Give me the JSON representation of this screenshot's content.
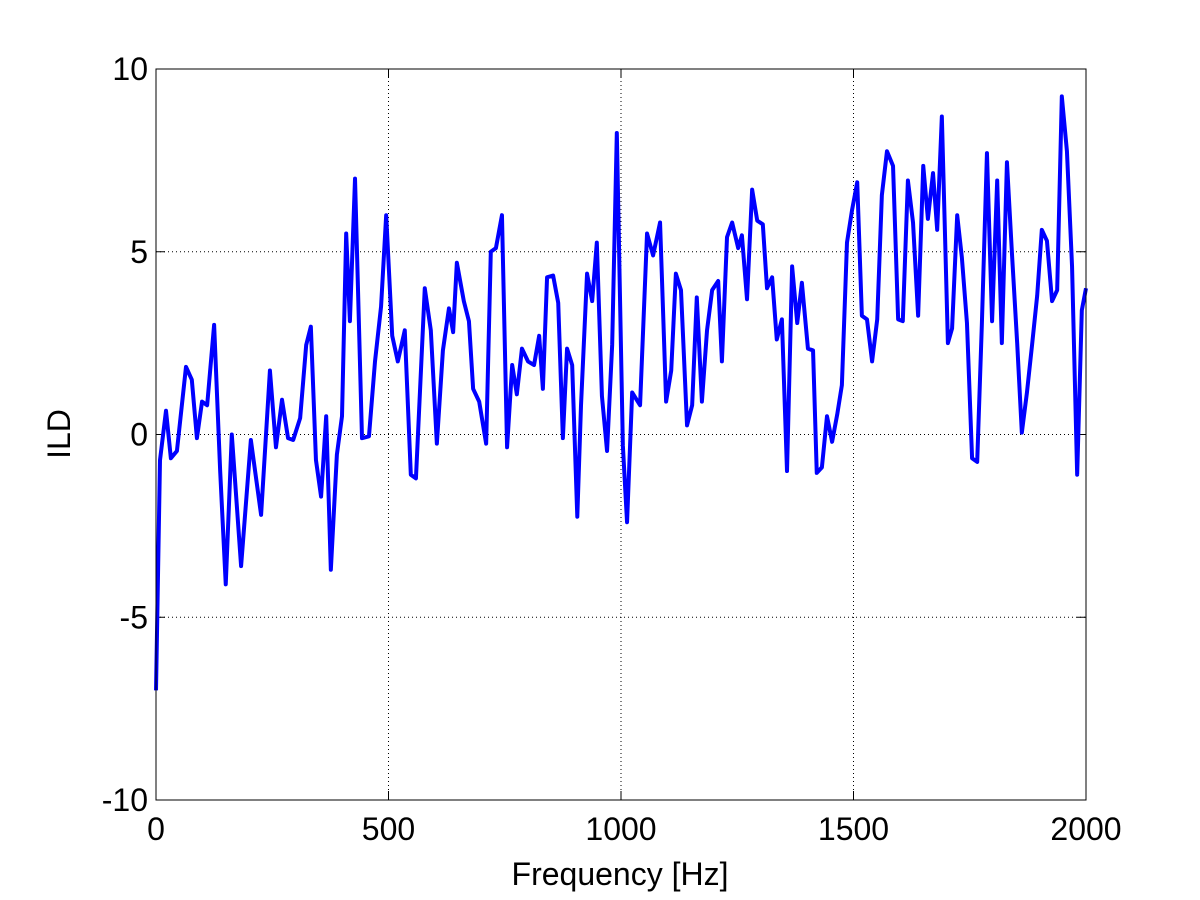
{
  "chart_data": {
    "type": "line",
    "xlabel": "Frequency [Hz]",
    "ylabel": "ILD",
    "xlim": [
      0,
      2000
    ],
    "ylim": [
      -10,
      10
    ],
    "xticks": [
      0,
      500,
      1000,
      1500,
      2000
    ],
    "yticks": [
      -10,
      -5,
      0,
      5,
      10
    ],
    "grid": true,
    "x": [
      0,
      8.6,
      21.5,
      32,
      45,
      64.5,
      77,
      88,
      99,
      110,
      125,
      138,
      150,
      163,
      183,
      204,
      226,
      245,
      258,
      271,
      284,
      295,
      310,
      323,
      333,
      344,
      355,
      366,
      376,
      389,
      400,
      409,
      417,
      428,
      443,
      458,
      471,
      484,
      495,
      508,
      520,
      535,
      548,
      559,
      578,
      591,
      604,
      617,
      630,
      639,
      647,
      662,
      673,
      682,
      695,
      710,
      720,
      731,
      744,
      755,
      766,
      776,
      787,
      800,
      813,
      824,
      832,
      841,
      854,
      865,
      875,
      884,
      895,
      906,
      914,
      927,
      938,
      948,
      959,
      970,
      981,
      991,
      1004,
      1013,
      1024,
      1041,
      1056,
      1069,
      1084,
      1097,
      1108,
      1118,
      1129,
      1142,
      1153,
      1163,
      1174,
      1185,
      1196,
      1209,
      1217,
      1228,
      1239,
      1252,
      1260,
      1271,
      1282,
      1293,
      1305,
      1314,
      1325,
      1335,
      1346,
      1357,
      1368,
      1379,
      1389,
      1402,
      1413,
      1421,
      1432,
      1443,
      1454,
      1465,
      1475,
      1486,
      1497,
      1508,
      1518,
      1529,
      1540,
      1551,
      1561,
      1572,
      1585,
      1596,
      1606,
      1617,
      1628,
      1639,
      1650,
      1660,
      1671,
      1680,
      1690,
      1703,
      1712,
      1723,
      1733,
      1744,
      1755,
      1766,
      1776,
      1787,
      1798,
      1809,
      1819,
      1830,
      1841,
      1852,
      1862,
      1873,
      1884,
      1895,
      1905,
      1916,
      1927,
      1938,
      1948,
      1959,
      1970,
      1981,
      1991,
      2000
    ],
    "series": [
      {
        "color": "#0000ff",
        "values": [
          -7.0,
          -0.7,
          0.65,
          -0.65,
          -0.45,
          1.85,
          1.5,
          -0.1,
          0.9,
          0.8,
          3.0,
          -1.0,
          -4.1,
          0,
          -3.6,
          -0.15,
          -2.2,
          1.75,
          -0.35,
          0.95,
          -0.1,
          -0.15,
          0.45,
          2.45,
          2.95,
          -0.7,
          -1.7,
          0.5,
          -3.7,
          -0.55,
          0.5,
          5.5,
          3.1,
          7.0,
          -0.1,
          -0.05,
          2.0,
          3.5,
          6.0,
          2.7,
          2.0,
          2.85,
          -1.1,
          -1.2,
          4.0,
          2.85,
          -0.25,
          2.3,
          3.45,
          2.8,
          4.7,
          3.65,
          3.1,
          1.25,
          0.9,
          -0.25,
          5.0,
          5.1,
          6.0,
          -0.35,
          1.9,
          1.1,
          2.35,
          2.0,
          1.9,
          2.7,
          1.25,
          4.3,
          4.35,
          3.6,
          -0.1,
          2.35,
          1.9,
          -2.25,
          0.8,
          4.4,
          3.65,
          5.25,
          1.05,
          -0.45,
          2.45,
          8.25,
          -0.3,
          -2.4,
          1.15,
          0.8,
          5.5,
          4.9,
          5.8,
          0.9,
          1.75,
          4.4,
          3.95,
          0.25,
          0.8,
          3.75,
          0.9,
          2.85,
          3.95,
          4.2,
          2.0,
          5.4,
          5.8,
          5.1,
          5.45,
          3.7,
          6.7,
          5.85,
          5.75,
          4.0,
          4.3,
          2.6,
          3.15,
          -1.0,
          4.6,
          3.05,
          4.15,
          2.35,
          2.3,
          -1.05,
          -0.9,
          0.5,
          -0.2,
          0.55,
          1.35,
          5.25,
          6.15,
          6.9,
          3.25,
          3.15,
          2.0,
          3.15,
          6.55,
          7.75,
          7.35,
          3.15,
          3.1,
          6.95,
          5.8,
          3.25,
          7.35,
          5.9,
          7.15,
          5.6,
          8.7,
          2.5,
          2.9,
          6.0,
          4.85,
          3.05,
          -0.65,
          -0.75,
          3.0,
          7.7,
          3.1,
          6.95,
          2.5,
          7.45,
          4.9,
          2.5,
          0.05,
          1.15,
          2.45,
          3.8,
          5.6,
          5.3,
          3.65,
          3.95,
          9.25,
          7.75,
          4.6,
          -1.1,
          3.4,
          4.0
        ]
      }
    ]
  }
}
